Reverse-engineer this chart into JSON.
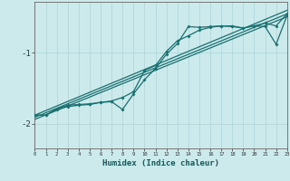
{
  "xlabel": "Humidex (Indice chaleur)",
  "bg_color": "#cce9ec",
  "grid_color": "#aad4d9",
  "line_color": "#1a7070",
  "x": [
    0,
    1,
    2,
    3,
    4,
    5,
    6,
    7,
    8,
    9,
    10,
    11,
    12,
    13,
    14,
    15,
    16,
    17,
    18,
    19,
    20,
    21,
    22,
    23
  ],
  "line1": [
    -1.88,
    -1.88,
    -1.79,
    -1.74,
    -1.73,
    -1.72,
    -1.7,
    -1.68,
    -1.63,
    -1.55,
    -1.25,
    -1.18,
    -0.98,
    -0.83,
    -0.76,
    -0.68,
    -0.64,
    -0.62,
    -0.62,
    -0.65,
    -0.62,
    -0.58,
    -0.62,
    -0.45
  ],
  "line2": [
    -1.88,
    -1.88,
    -1.8,
    -1.76,
    -1.74,
    -1.73,
    -1.7,
    -1.69,
    -1.8,
    -1.58,
    -1.38,
    -1.22,
    -1.02,
    -0.87,
    -0.63,
    -0.64,
    -0.63,
    -0.62,
    -0.63,
    -0.65,
    -0.62,
    -0.63,
    -0.88,
    -0.47
  ],
  "trend_lines": [
    [
      -1.88,
      -0.4
    ],
    [
      -1.91,
      -0.45
    ],
    [
      -1.94,
      -0.49
    ]
  ],
  "ylim": [
    -2.35,
    -0.28
  ],
  "xlim": [
    0,
    23
  ]
}
